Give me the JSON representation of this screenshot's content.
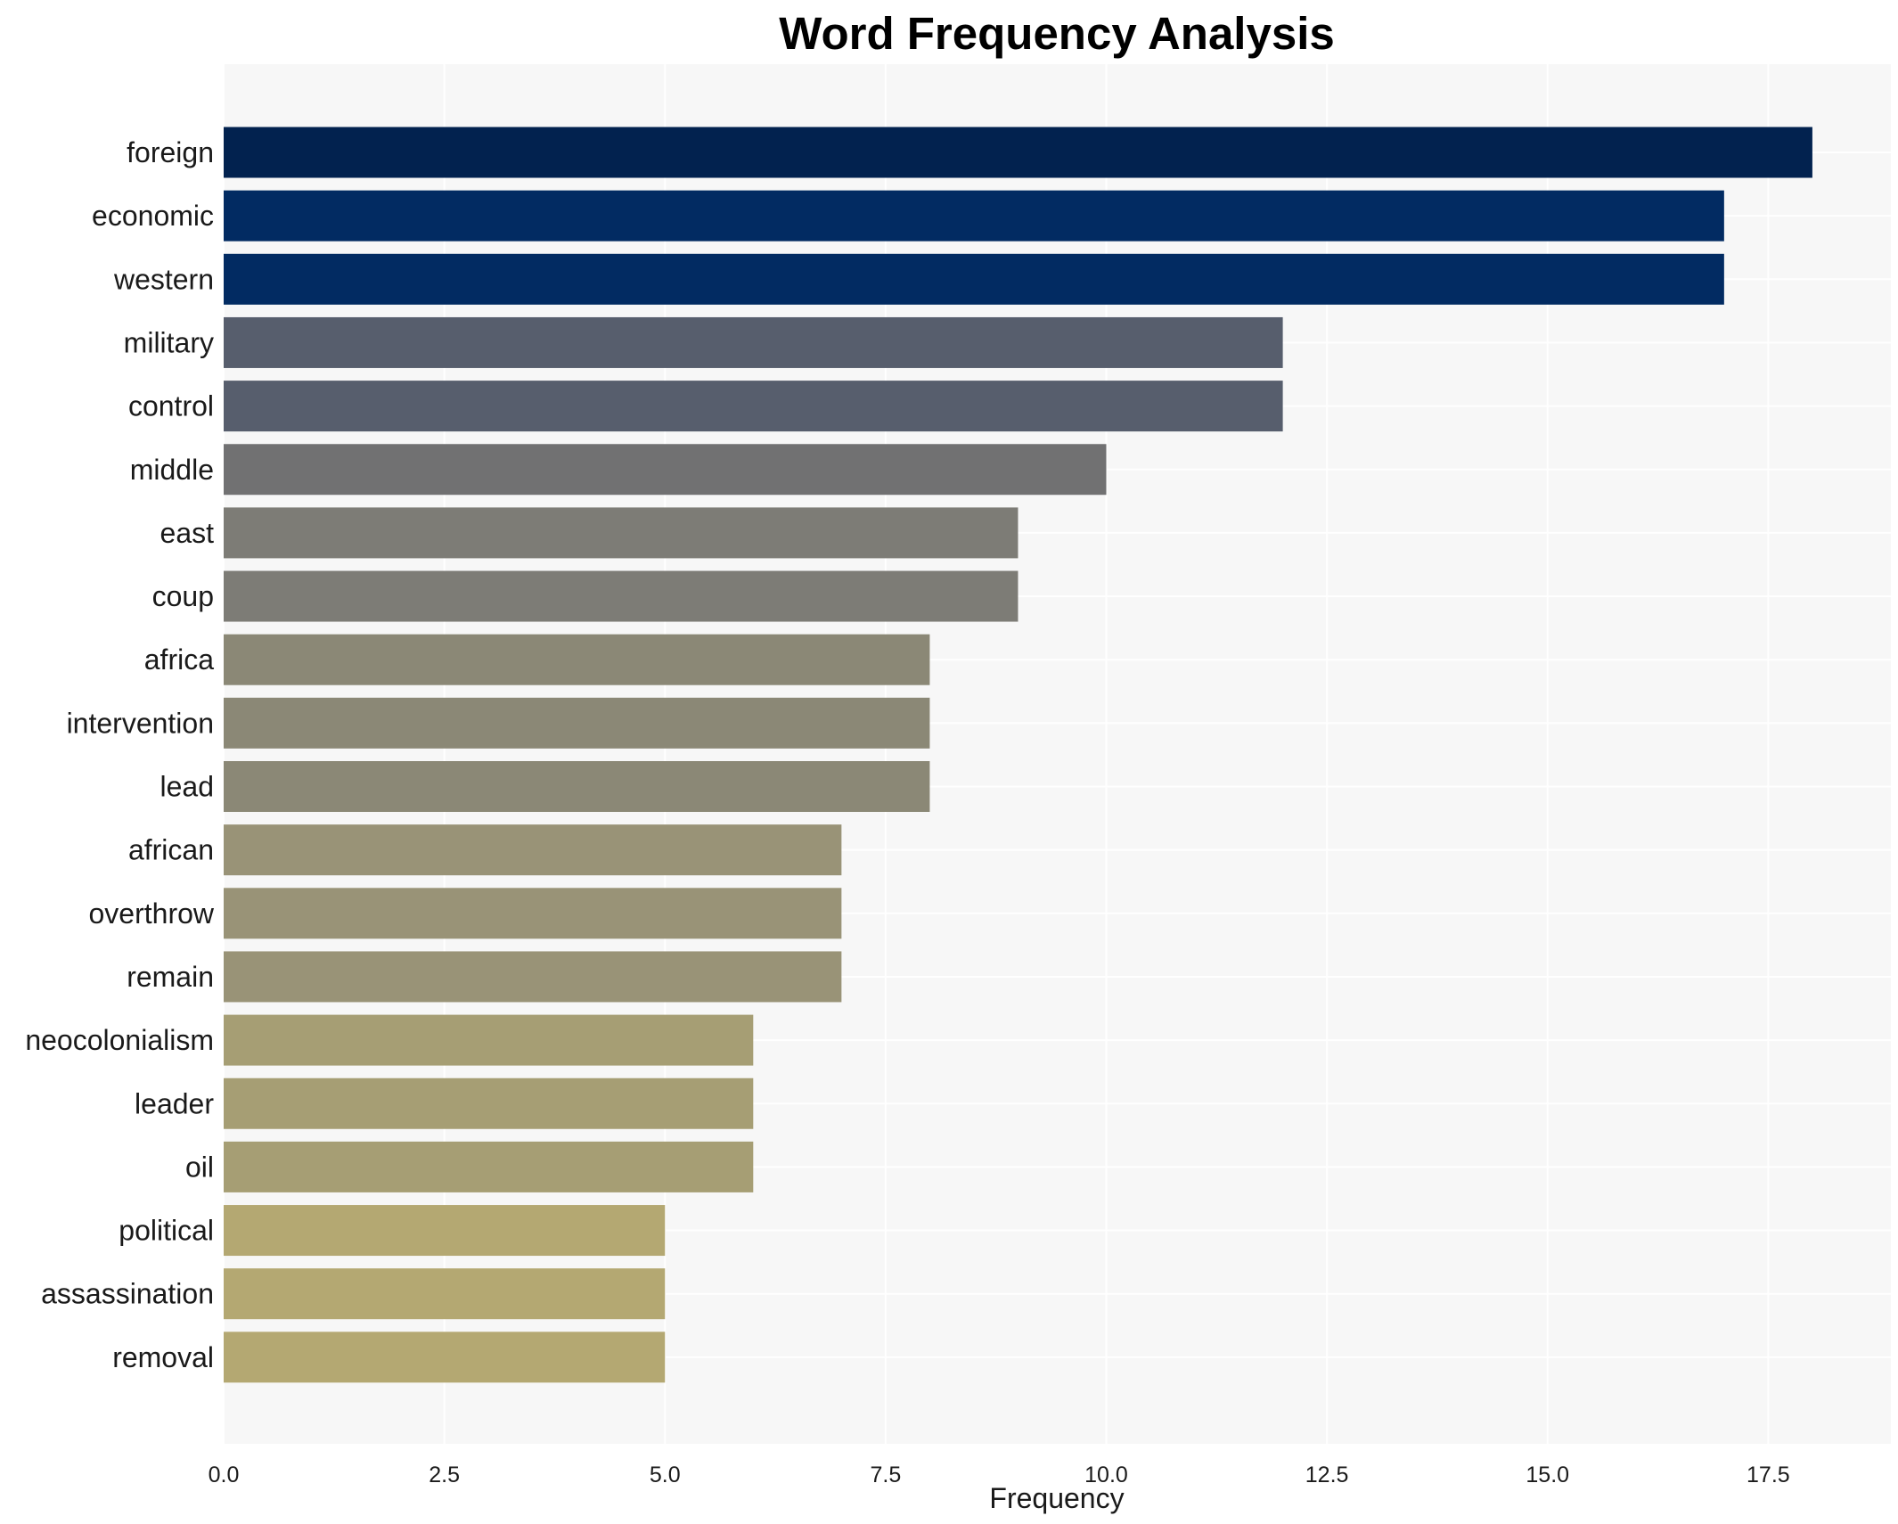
{
  "chart_data": {
    "type": "bar",
    "orientation": "horizontal",
    "title": "Word Frequency Analysis",
    "xlabel": "Frequency",
    "ylabel": "",
    "xlim": [
      0,
      18.8
    ],
    "x_ticks": [
      0.0,
      2.5,
      5.0,
      7.5,
      10.0,
      12.5,
      15.0,
      17.5
    ],
    "x_tick_labels": [
      "0.0",
      "2.5",
      "5.0",
      "7.5",
      "10.0",
      "12.5",
      "15.0",
      "17.5"
    ],
    "grid": true,
    "background": "#f7f7f7",
    "categories": [
      "foreign",
      "economic",
      "western",
      "military",
      "control",
      "middle",
      "east",
      "coup",
      "africa",
      "intervention",
      "lead",
      "african",
      "overthrow",
      "remain",
      "neocolonialism",
      "leader",
      "oil",
      "political",
      "assassination",
      "removal"
    ],
    "values": [
      18,
      17,
      17,
      12,
      12,
      10,
      9,
      9,
      8,
      8,
      8,
      7,
      7,
      7,
      6,
      6,
      6,
      5,
      5,
      5
    ],
    "colors": [
      "#02224f",
      "#022b62",
      "#022b62",
      "#575e6d",
      "#575e6d",
      "#717172",
      "#7d7c76",
      "#7d7c76",
      "#8b8876",
      "#8b8876",
      "#8b8876",
      "#999377",
      "#999377",
      "#999377",
      "#a69e74",
      "#a69e74",
      "#a69e74",
      "#b4a872",
      "#b4a872",
      "#b4a872"
    ]
  }
}
